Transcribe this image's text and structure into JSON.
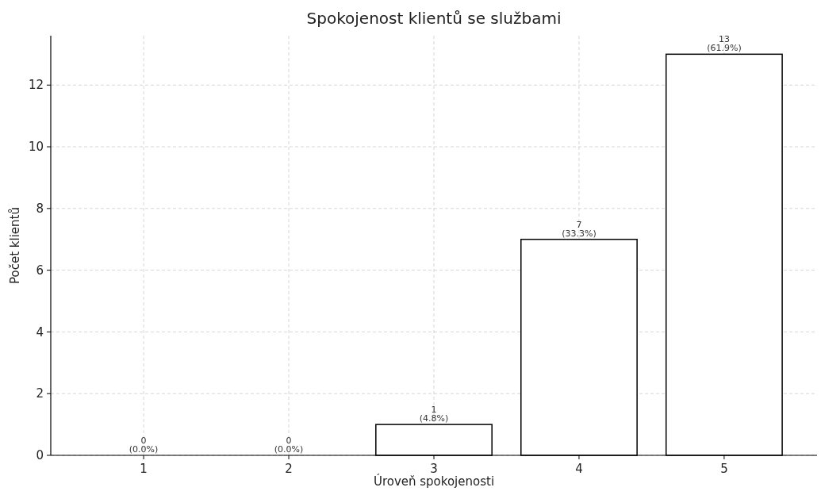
{
  "chart_data": {
    "type": "bar",
    "title": "Spokojenost klientů se službami",
    "xlabel": "Úroveň spokojenosti",
    "ylabel": "Počet klientů",
    "categories": [
      "1",
      "2",
      "3",
      "4",
      "5"
    ],
    "values": [
      0,
      0,
      1,
      7,
      13
    ],
    "color": "#ffffff",
    "value_labels": [
      "0\n(0.0%)",
      "0\n(0.0%)",
      "1\n(4.8%)",
      "7\n(33.3%)",
      "13\n(61.9%)"
    ],
    "ylim": [
      0,
      13.6
    ],
    "yticks": [
      0,
      2,
      4,
      6,
      8,
      10,
      12
    ],
    "grid": true
  }
}
